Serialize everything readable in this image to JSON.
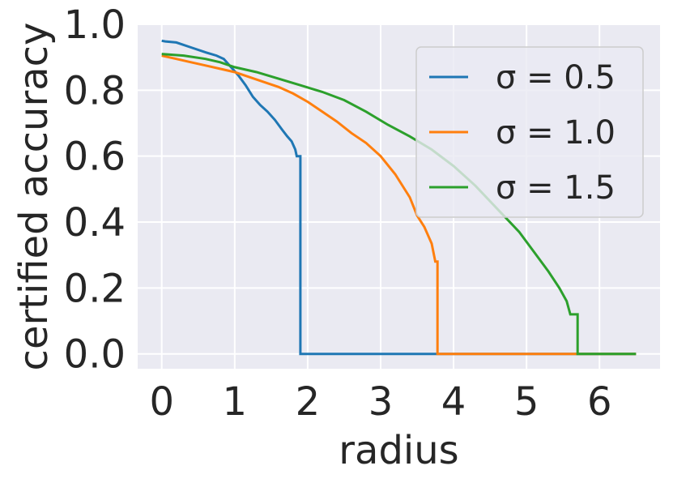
{
  "chart_data": {
    "type": "line",
    "title": "",
    "xlabel": "radius",
    "ylabel": "certified accuracy",
    "xlim": [
      -0.33,
      6.83
    ],
    "ylim": [
      -0.045,
      1.0
    ],
    "xticks": [
      0,
      1,
      2,
      3,
      4,
      5,
      6
    ],
    "yticks": [
      0.0,
      0.2,
      0.4,
      0.6,
      0.8,
      1.0
    ],
    "xtick_labels": [
      "0",
      "1",
      "2",
      "3",
      "4",
      "5",
      "6"
    ],
    "ytick_labels": [
      "0.0",
      "0.2",
      "0.4",
      "0.6",
      "0.8",
      "1.0"
    ],
    "grid": true,
    "legend_position": "top-right",
    "background_color": "#EAEAF2",
    "series": [
      {
        "name": "σ = 0.5",
        "color": "#1f77b4",
        "x": [
          0,
          0.05,
          0.2,
          0.4,
          0.6,
          0.75,
          0.85,
          0.95,
          1.05,
          1.15,
          1.25,
          1.35,
          1.45,
          1.55,
          1.65,
          1.72,
          1.78,
          1.83,
          1.85,
          1.88,
          1.9,
          1.9,
          2.0,
          3.0,
          4.0,
          5.0,
          6.0,
          6.5
        ],
        "y": [
          0.95,
          0.948,
          0.945,
          0.93,
          0.915,
          0.905,
          0.895,
          0.87,
          0.845,
          0.815,
          0.78,
          0.755,
          0.735,
          0.71,
          0.68,
          0.66,
          0.645,
          0.62,
          0.6,
          0.6,
          0.6,
          0.0,
          0.0,
          0.0,
          0.0,
          0.0,
          0.0,
          0.0
        ]
      },
      {
        "name": "σ = 1.0",
        "color": "#ff7f0e",
        "x": [
          0,
          0.2,
          0.4,
          0.6,
          0.8,
          1.0,
          1.2,
          1.4,
          1.6,
          1.8,
          2.0,
          2.2,
          2.4,
          2.6,
          2.8,
          3.0,
          3.2,
          3.4,
          3.5,
          3.6,
          3.65,
          3.7,
          3.75,
          3.78,
          3.78,
          4.0,
          5.0,
          6.0,
          6.5
        ],
        "y": [
          0.905,
          0.895,
          0.885,
          0.875,
          0.865,
          0.855,
          0.84,
          0.825,
          0.81,
          0.79,
          0.765,
          0.735,
          0.705,
          0.67,
          0.64,
          0.6,
          0.545,
          0.475,
          0.42,
          0.385,
          0.36,
          0.335,
          0.28,
          0.28,
          0.0,
          0.0,
          0.0,
          0.0,
          0.0
        ]
      },
      {
        "name": "σ = 1.5",
        "color": "#2ca02c",
        "x": [
          0,
          0.3,
          0.6,
          0.8,
          1.0,
          1.3,
          1.6,
          1.9,
          2.2,
          2.5,
          2.8,
          3.1,
          3.4,
          3.7,
          4.0,
          4.3,
          4.6,
          4.9,
          5.1,
          5.3,
          5.45,
          5.55,
          5.6,
          5.7,
          5.7,
          6.0,
          6.5
        ],
        "y": [
          0.91,
          0.905,
          0.895,
          0.885,
          0.87,
          0.855,
          0.835,
          0.815,
          0.795,
          0.77,
          0.735,
          0.695,
          0.66,
          0.62,
          0.57,
          0.51,
          0.44,
          0.37,
          0.31,
          0.25,
          0.2,
          0.16,
          0.12,
          0.12,
          0.0,
          0.0,
          0.0
        ]
      }
    ]
  }
}
